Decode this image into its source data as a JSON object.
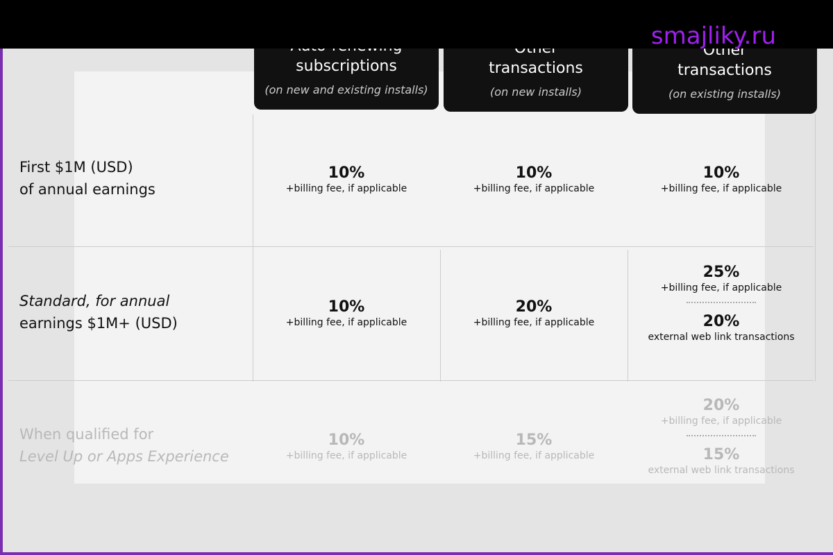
{
  "watermark": "smajliky.ru",
  "header": {
    "columns": [
      {
        "title": [
          "Auto-renewing",
          "subscriptions"
        ],
        "note": "(on new and existing installs)"
      },
      {
        "title": [
          "Other",
          "transactions"
        ],
        "note": "(on new installs)"
      },
      {
        "title": [
          "Other",
          "transactions"
        ],
        "note": "(on existing installs)"
      }
    ]
  },
  "table": {
    "rows": [
      {
        "label": [
          "First $1M (USD)",
          "of annual earnings"
        ],
        "cells": [
          [
            {
              "rate": "10%",
              "note": "+billing fee, if applicable"
            }
          ],
          [
            {
              "rate": "10%",
              "note": "+billing fee, if applicable"
            }
          ],
          [
            {
              "rate": "10%",
              "note": "+billing fee, if applicable"
            }
          ]
        ]
      },
      {
        "label": [
          "Standard, for annual",
          "earnings $1M+ (USD)"
        ],
        "cells": [
          [
            {
              "rate": "10%",
              "note": "+billing fee, if applicable"
            }
          ],
          [
            {
              "rate": "20%",
              "note": "+billing fee, if applicable"
            }
          ],
          [
            {
              "rate": "25%",
              "note": "+billing fee, if applicable"
            },
            {
              "rate": "20%",
              "note": "external web link transactions"
            }
          ]
        ]
      },
      {
        "label": [
          "When qualified for",
          "Level Up or Apps Experience"
        ],
        "cells": [
          [
            {
              "rate": "10%",
              "note": "+billing fee, if applicable"
            }
          ],
          [
            {
              "rate": "15%",
              "note": "+billing fee, if applicable"
            }
          ],
          [
            {
              "rate": "20%",
              "note": "+billing fee, if applicable"
            },
            {
              "rate": "15%",
              "note": "external web link transactions"
            }
          ]
        ]
      }
    ]
  }
}
